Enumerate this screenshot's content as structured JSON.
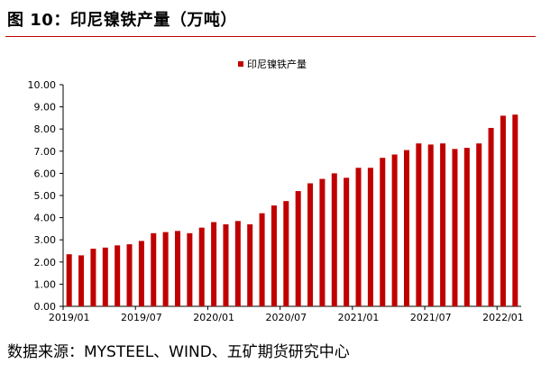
{
  "figure": {
    "title": "图 10：印尼镍铁产量（万吨）",
    "source": "数据来源：MYSTEEL、WIND、五矿期货研究中心"
  },
  "colors": {
    "bar": "#c00000",
    "axis": "#000000",
    "rule": "#c00000"
  },
  "chart_data": {
    "type": "bar",
    "title": "",
    "xlabel": "",
    "ylabel": "",
    "ylim": [
      0,
      10
    ],
    "yticks": [
      "0.00",
      "1.00",
      "2.00",
      "3.00",
      "4.00",
      "5.00",
      "6.00",
      "7.00",
      "8.00",
      "9.00",
      "10.00"
    ],
    "grid": false,
    "legend_position": "top-center",
    "x_tick_labels": [
      {
        "index": 0,
        "label": "2019/01"
      },
      {
        "index": 6,
        "label": "2019/07"
      },
      {
        "index": 12,
        "label": "2020/01"
      },
      {
        "index": 18,
        "label": "2020/07"
      },
      {
        "index": 24,
        "label": "2021/01"
      },
      {
        "index": 30,
        "label": "2021/07"
      },
      {
        "index": 36,
        "label": "2022/01"
      }
    ],
    "categories": [
      "2019/01",
      "2019/02",
      "2019/03",
      "2019/04",
      "2019/05",
      "2019/06",
      "2019/07",
      "2019/08",
      "2019/09",
      "2019/10",
      "2019/11",
      "2019/12",
      "2020/01",
      "2020/02",
      "2020/03",
      "2020/04",
      "2020/05",
      "2020/06",
      "2020/07",
      "2020/08",
      "2020/09",
      "2020/10",
      "2020/11",
      "2020/12",
      "2021/01",
      "2021/02",
      "2021/03",
      "2021/04",
      "2021/05",
      "2021/06",
      "2021/07",
      "2021/08",
      "2021/09",
      "2021/10",
      "2021/11",
      "2021/12",
      "2022/01",
      "2022/02"
    ],
    "series": [
      {
        "name": "印尼镍铁产量",
        "values": [
          2.35,
          2.3,
          2.6,
          2.65,
          2.75,
          2.8,
          2.95,
          3.3,
          3.35,
          3.4,
          3.3,
          3.55,
          3.8,
          3.7,
          3.85,
          3.7,
          4.2,
          4.55,
          4.75,
          5.2,
          5.55,
          5.75,
          6.0,
          5.8,
          6.25,
          6.25,
          6.7,
          6.85,
          7.05,
          7.35,
          7.3,
          7.35,
          7.1,
          7.15,
          7.35,
          8.05,
          8.6,
          8.65
        ]
      }
    ]
  }
}
